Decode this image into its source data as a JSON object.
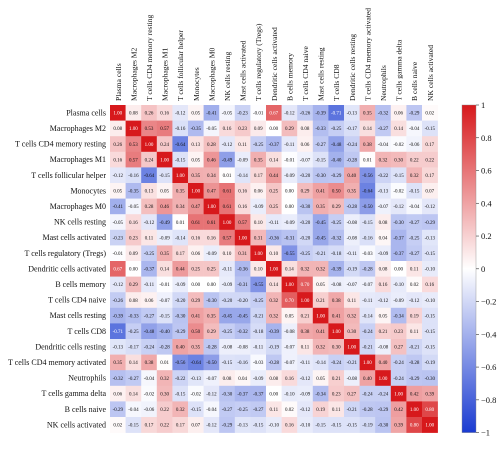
{
  "chart_data": {
    "type": "heatmap",
    "title": "",
    "row_labels": [
      "Plasma cells",
      "Macrophages M2",
      "T cells CD4 memory resting",
      "Macrophages M1",
      "T cells follicular helper",
      "Monocytes",
      "Macrophages M0",
      "NK cells resting",
      "Mast cells activated",
      "T cells regulatory (Tregs)",
      "Dendritic cells activated",
      "B cells memory",
      "T cells CD4 naive",
      "Mast cells resting",
      "T cells CD8",
      "Dendritic cells resting",
      "T cells CD4 memory activated",
      "Neutrophils",
      "T cells gamma delta",
      "B cells naive",
      "NK cells activated"
    ],
    "col_labels": [
      "Plasma cells",
      "Macrophages M2",
      "T cells CD4 memory resting",
      "Macrophages M1",
      "T cells follicular helper",
      "Monocytes",
      "Macrophages M0",
      "NK cells resting",
      "Mast cells activated",
      "T cells regulatory (Tregs)",
      "Dendritic cells activated",
      "B cells memory",
      "T cells CD4 naive",
      "Mast cells resting",
      "T cells CD8",
      "Dendritic cells resting",
      "T cells CD4 memory activated",
      "Neutrophils",
      "T cells gamma delta",
      "B cells naive",
      "NK cells activated"
    ],
    "values": [
      [
        1.0,
        0.08,
        0.26,
        0.16,
        -0.12,
        0.05,
        -0.41,
        -0.05,
        -0.23,
        -0.01,
        0.67,
        -0.12,
        -0.26,
        -0.39,
        -0.71,
        -0.13,
        0.35,
        -0.32,
        0.06,
        -0.29,
        0.02
      ],
      [
        0.08,
        1.0,
        0.53,
        0.57,
        -0.16,
        -0.35,
        -0.05,
        0.16,
        0.23,
        0.09,
        0.0,
        0.29,
        0.08,
        -0.33,
        -0.25,
        -0.17,
        0.14,
        -0.27,
        0.14,
        -0.04,
        -0.15
      ],
      [
        0.26,
        0.53,
        1.0,
        0.24,
        -0.64,
        0.13,
        0.28,
        -0.12,
        0.11,
        -0.25,
        -0.37,
        -0.11,
        0.06,
        -0.27,
        -0.48,
        -0.24,
        0.38,
        -0.04,
        -0.02,
        -0.06,
        0.17
      ],
      [
        0.16,
        0.57,
        0.24,
        1.0,
        -0.15,
        0.05,
        0.46,
        -0.49,
        -0.09,
        0.35,
        0.14,
        -0.01,
        -0.07,
        -0.15,
        -0.4,
        -0.28,
        0.01,
        0.32,
        0.3,
        0.22,
        0.22
      ],
      [
        -0.12,
        -0.16,
        -0.64,
        -0.15,
        1.0,
        0.35,
        0.34,
        0.01,
        -0.14,
        0.17,
        0.44,
        -0.09,
        -0.2,
        -0.3,
        -0.29,
        0.4,
        -0.56,
        -0.22,
        -0.15,
        0.32,
        0.17
      ],
      [
        0.05,
        -0.35,
        0.13,
        0.05,
        0.35,
        1.0,
        0.47,
        0.61,
        0.16,
        0.06,
        0.25,
        0.0,
        0.29,
        0.41,
        0.5,
        0.35,
        -0.64,
        -0.13,
        -0.02,
        -0.15,
        0.07
      ],
      [
        -0.41,
        -0.05,
        0.28,
        0.46,
        0.34,
        0.47,
        1.0,
        0.61,
        0.16,
        -0.09,
        0.25,
        0.0,
        -0.3,
        0.35,
        0.29,
        -0.28,
        -0.5,
        -0.07,
        -0.12,
        -0.04,
        -0.12
      ],
      [
        -0.05,
        0.16,
        -0.12,
        -0.49,
        0.01,
        0.61,
        0.61,
        1.0,
        0.57,
        0.1,
        -0.11,
        -0.09,
        -0.2,
        -0.45,
        -0.25,
        -0.08,
        -0.15,
        0.08,
        -0.3,
        -0.27,
        -0.29
      ],
      [
        -0.23,
        0.23,
        0.11,
        -0.09,
        -0.14,
        0.16,
        0.16,
        0.57,
        1.0,
        0.31,
        -0.36,
        -0.31,
        -0.2,
        -0.45,
        -0.32,
        -0.08,
        -0.16,
        0.04,
        -0.37,
        -0.25,
        -0.13
      ],
      [
        -0.01,
        0.09,
        -0.25,
        0.35,
        0.17,
        0.06,
        -0.09,
        0.1,
        0.31,
        1.0,
        0.1,
        -0.55,
        -0.25,
        -0.21,
        -0.18,
        -0.11,
        -0.03,
        -0.09,
        -0.37,
        -0.27,
        -0.15
      ],
      [
        0.67,
        0.0,
        -0.37,
        0.14,
        0.44,
        0.25,
        0.25,
        -0.11,
        -0.36,
        0.1,
        1.0,
        0.14,
        0.32,
        0.32,
        -0.39,
        -0.19,
        -0.28,
        0.08,
        0.0,
        0.11,
        -0.1
      ],
      [
        -0.12,
        0.29,
        -0.11,
        -0.01,
        -0.09,
        0.0,
        0.0,
        -0.09,
        -0.31,
        -0.55,
        0.14,
        1.0,
        0.7,
        0.05,
        -0.08,
        -0.07,
        -0.07,
        0.16,
        -0.1,
        0.02,
        0.16
      ],
      [
        -0.26,
        0.08,
        0.06,
        -0.07,
        -0.2,
        0.29,
        -0.3,
        -0.2,
        -0.2,
        -0.25,
        0.32,
        0.7,
        1.0,
        0.21,
        0.38,
        0.11,
        -0.11,
        -0.12,
        -0.09,
        -0.12,
        -0.1
      ],
      [
        -0.39,
        -0.33,
        -0.27,
        -0.15,
        -0.3,
        0.41,
        0.35,
        -0.45,
        -0.45,
        -0.21,
        0.32,
        0.05,
        0.21,
        1.0,
        0.41,
        0.32,
        -0.14,
        0.05,
        -0.34,
        0.19,
        -0.15
      ],
      [
        -0.71,
        -0.25,
        -0.48,
        -0.4,
        -0.29,
        0.5,
        0.29,
        -0.25,
        -0.32,
        -0.18,
        -0.39,
        -0.08,
        0.38,
        0.41,
        1.0,
        0.3,
        -0.24,
        0.21,
        0.23,
        0.11,
        -0.15
      ],
      [
        -0.13,
        -0.17,
        -0.24,
        -0.28,
        0.4,
        0.35,
        -0.28,
        -0.08,
        -0.08,
        -0.11,
        -0.19,
        -0.07,
        0.11,
        0.32,
        0.3,
        1.0,
        -0.21,
        -0.08,
        0.27,
        -0.21,
        -0.15
      ],
      [
        0.35,
        0.14,
        0.38,
        0.01,
        -0.56,
        -0.64,
        -0.5,
        -0.15,
        -0.16,
        -0.03,
        -0.28,
        -0.07,
        -0.11,
        -0.14,
        -0.24,
        -0.21,
        1.0,
        0.4,
        -0.24,
        -0.28,
        -0.19
      ],
      [
        -0.32,
        -0.27,
        -0.04,
        0.32,
        -0.22,
        -0.13,
        -0.07,
        0.08,
        0.04,
        -0.09,
        0.08,
        0.16,
        -0.12,
        0.05,
        0.21,
        -0.08,
        0.4,
        1.0,
        -0.24,
        -0.29,
        -0.3
      ],
      [
        0.06,
        0.14,
        -0.02,
        0.3,
        -0.15,
        -0.02,
        -0.12,
        -0.3,
        -0.37,
        -0.37,
        0.0,
        -0.1,
        -0.09,
        -0.34,
        0.23,
        0.27,
        -0.24,
        -0.24,
        1.0,
        0.42,
        0.39
      ],
      [
        -0.29,
        -0.04,
        -0.06,
        0.22,
        0.32,
        -0.15,
        -0.04,
        -0.27,
        -0.25,
        -0.27,
        0.11,
        0.02,
        -0.12,
        0.19,
        0.11,
        -0.21,
        -0.28,
        -0.29,
        0.42,
        1.0,
        0.8
      ],
      [
        0.02,
        -0.15,
        0.17,
        0.22,
        0.17,
        0.07,
        -0.12,
        -0.29,
        -0.13,
        -0.15,
        -0.1,
        0.16,
        -0.1,
        -0.15,
        -0.15,
        -0.15,
        -0.19,
        -0.3,
        0.39,
        0.8,
        1.0
      ]
    ],
    "colorbar": {
      "range": [
        -1,
        1
      ],
      "ticks": [
        1,
        0.8,
        0.6,
        0.4,
        0.2,
        0,
        -0.2,
        -0.4,
        -0.6,
        -0.8,
        -1
      ],
      "low_color": "#1a3bd1",
      "mid_color": "#ffffff",
      "high_color": "#d7191c"
    }
  }
}
